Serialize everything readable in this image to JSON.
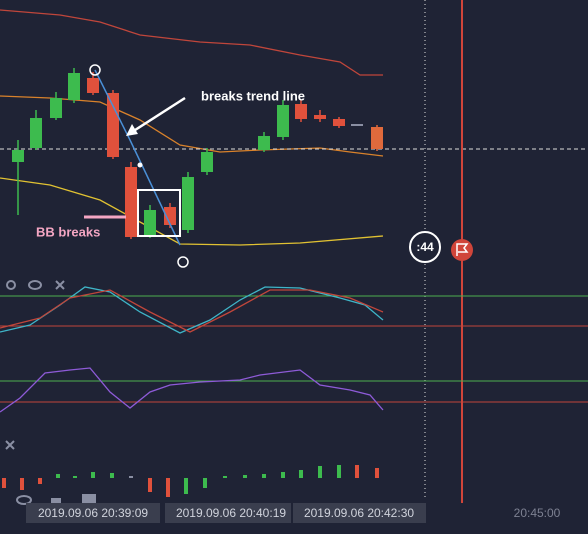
{
  "annotations": {
    "trend": "breaks trend line",
    "bb": "BB  breaks"
  },
  "timer": ":44",
  "time_labels": [
    "2019.09.06 20:39:09",
    "2019.09.06 20:40:19",
    "2019.09.06 20:42:30",
    "20:45:00"
  ]
}
